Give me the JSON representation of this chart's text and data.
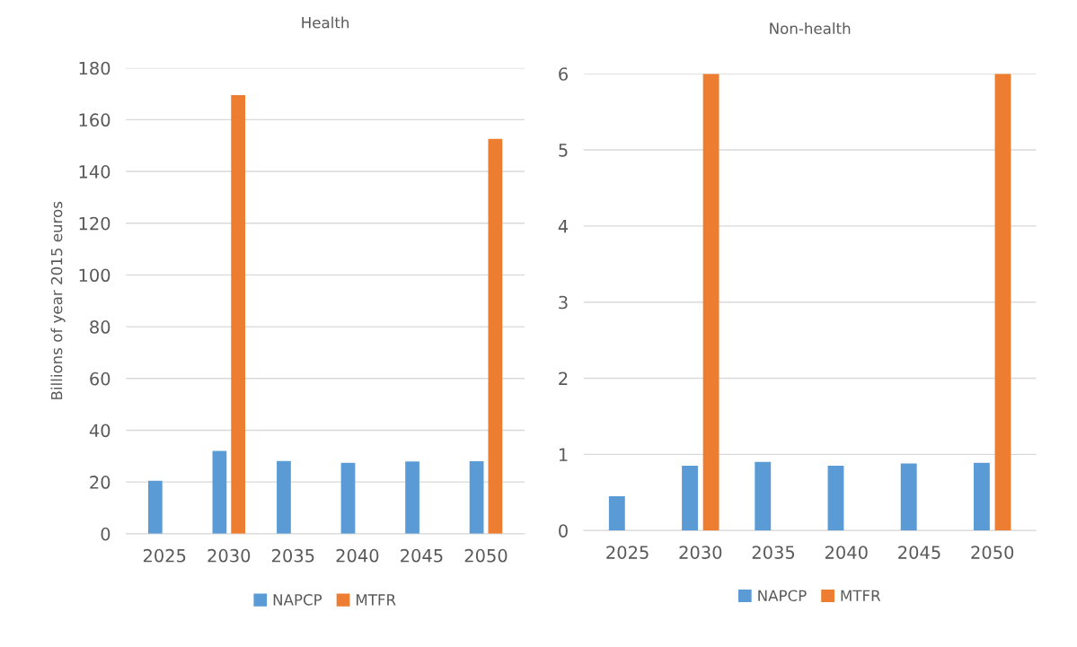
{
  "chart_data": [
    {
      "type": "bar",
      "title": "Health",
      "ylabel": "Billions of year 2015 euros",
      "categories": [
        "2025",
        "2030",
        "2035",
        "2040",
        "2045",
        "2050"
      ],
      "ylim": [
        0,
        180
      ],
      "yticks": [
        0,
        20,
        40,
        60,
        80,
        100,
        120,
        140,
        160,
        180
      ],
      "grid": "y",
      "legend": "bottom",
      "series": [
        {
          "name": "NAPCP",
          "color": "#5b9bd5",
          "values": [
            20.5,
            32.0,
            28.1,
            27.4,
            27.9,
            28.0
          ]
        },
        {
          "name": "MTFR",
          "color": "#ed7d31",
          "values": [
            null,
            169.5,
            null,
            null,
            null,
            152.6
          ]
        }
      ]
    },
    {
      "type": "bar",
      "title": "Non-health",
      "categories": [
        "2025",
        "2030",
        "2035",
        "2040",
        "2045",
        "2050"
      ],
      "ylim": [
        0,
        6
      ],
      "yticks": [
        0,
        1,
        2,
        3,
        4,
        5,
        6
      ],
      "grid": "y",
      "legend": "bottom",
      "series": [
        {
          "name": "NAPCP",
          "color": "#5b9bd5",
          "values": [
            0.45,
            0.85,
            0.9,
            0.85,
            0.88,
            0.89
          ]
        },
        {
          "name": "MTFR",
          "color": "#ed7d31",
          "values": [
            null,
            6,
            null,
            null,
            null,
            6
          ]
        }
      ]
    }
  ]
}
